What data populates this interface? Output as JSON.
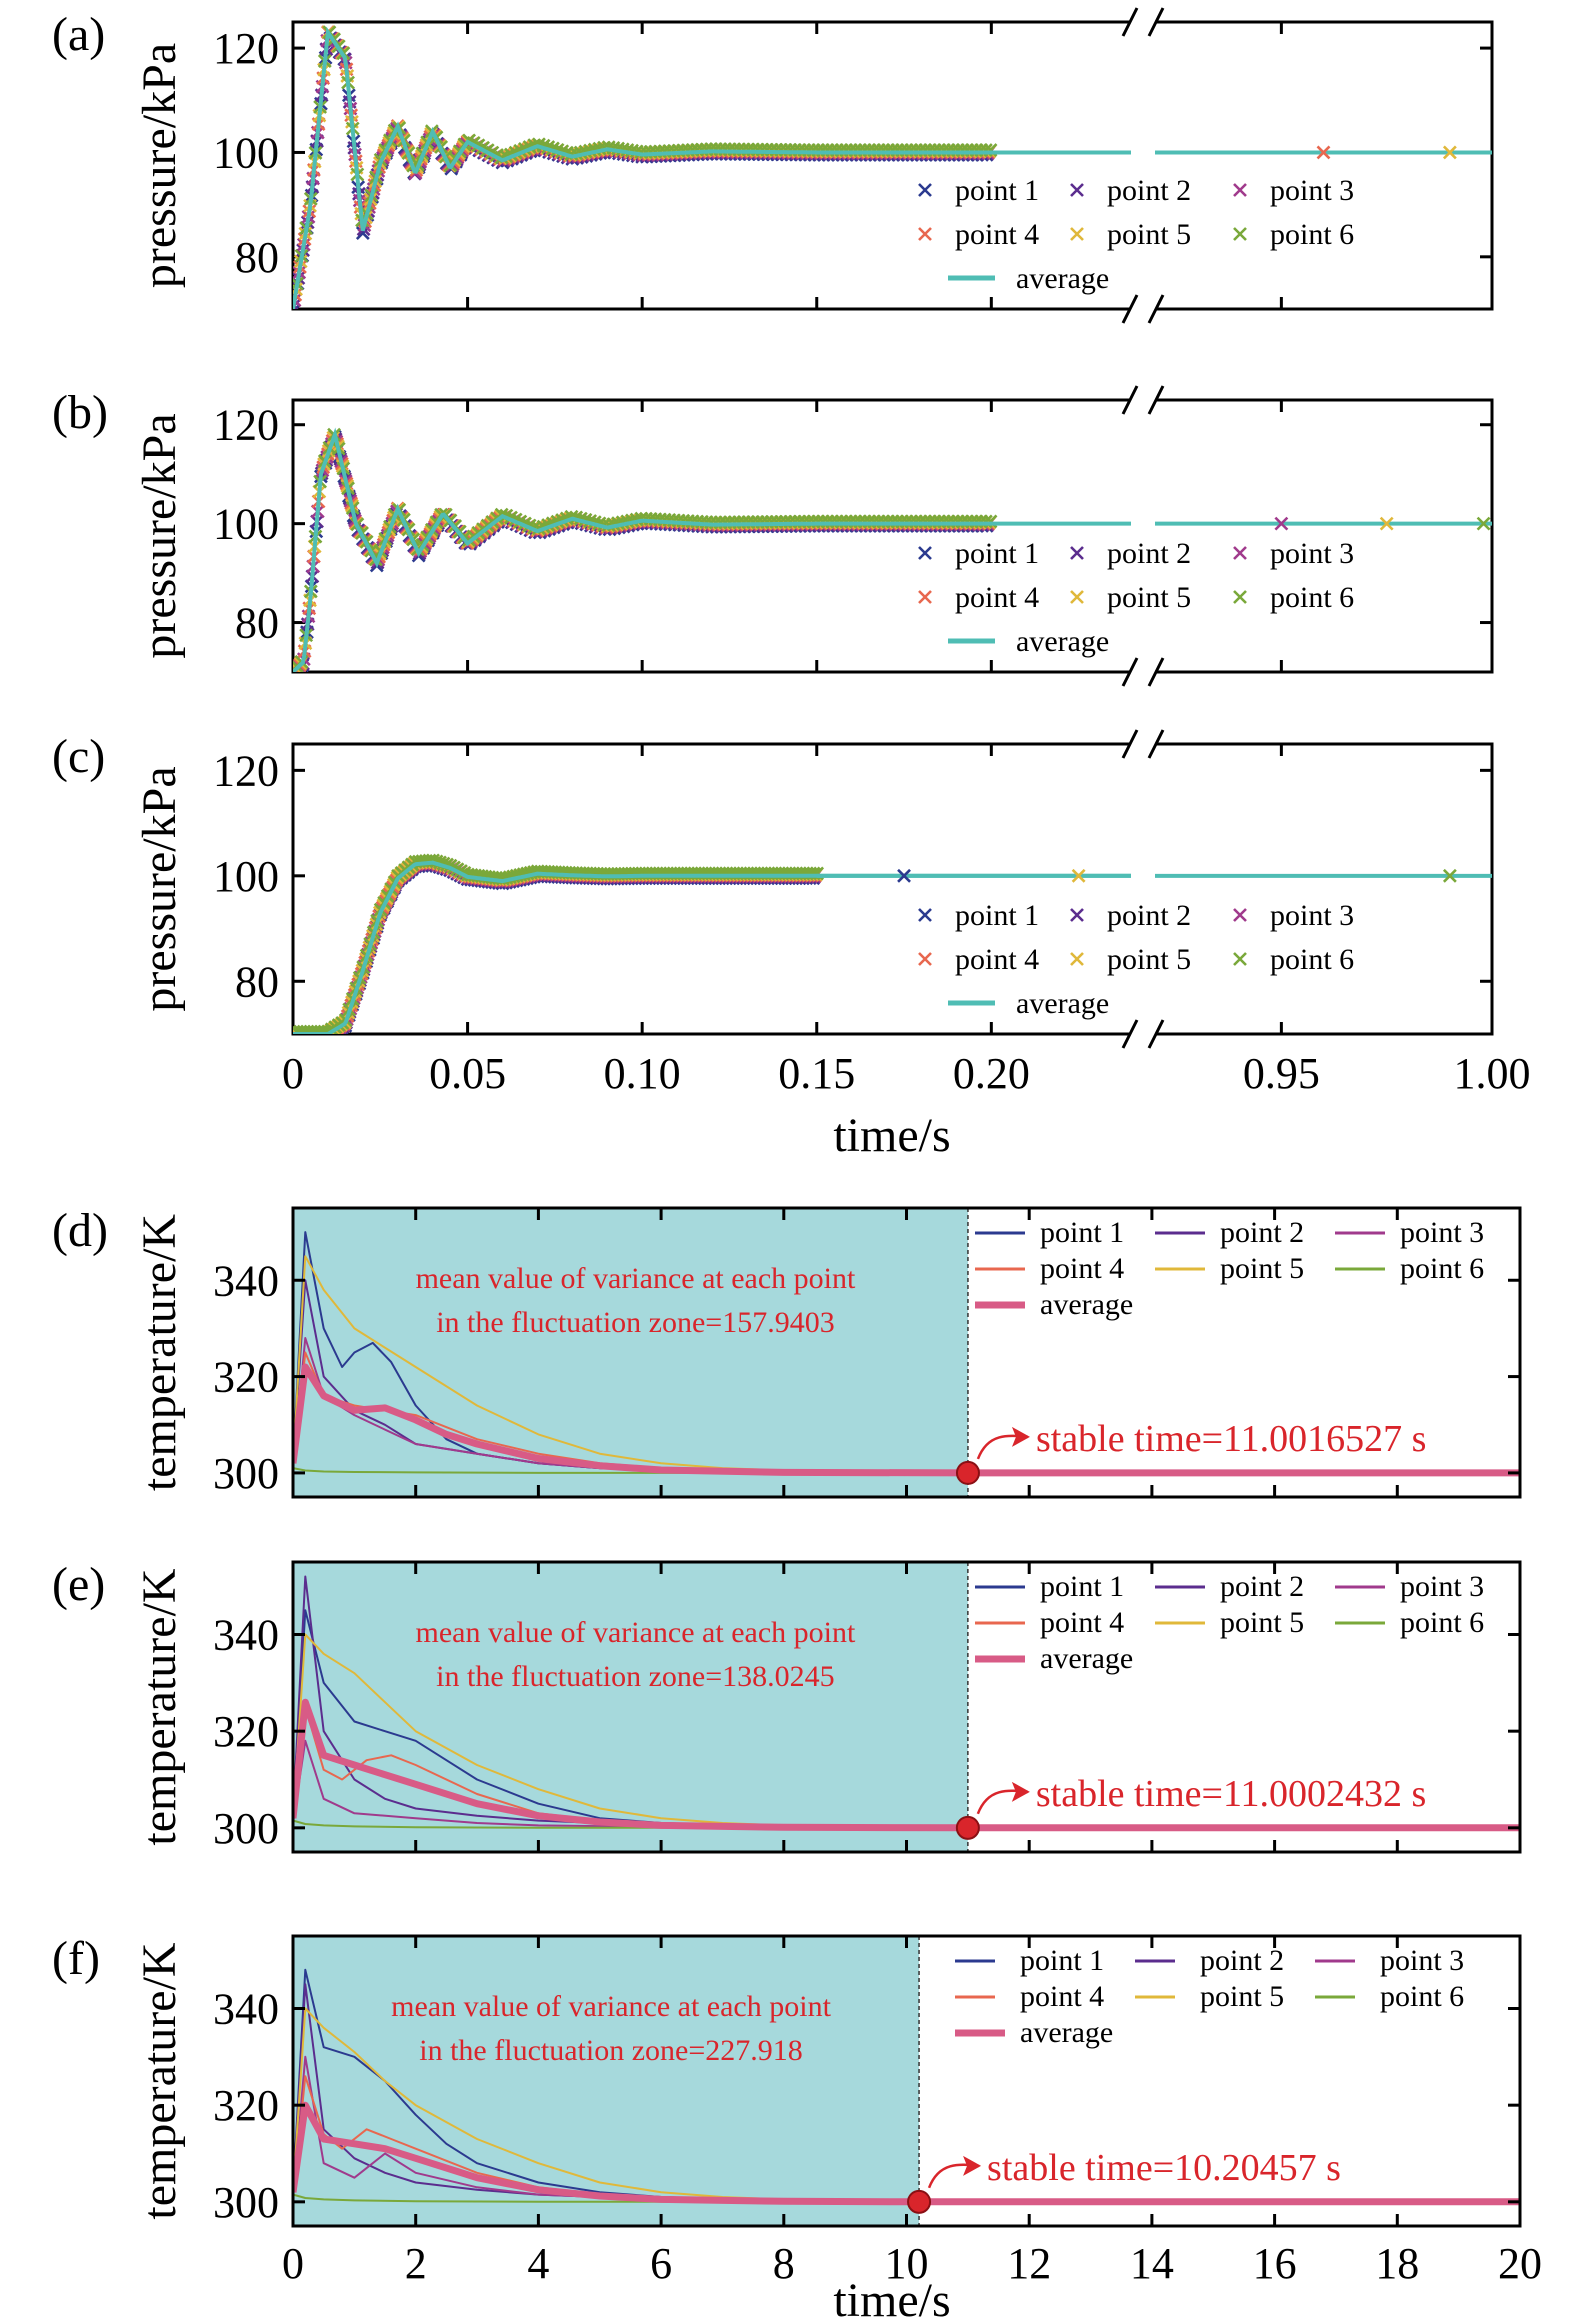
{
  "colors": {
    "point1": "#2b3a8f",
    "point2": "#5b2d8e",
    "point3": "#a03a8c",
    "point4": "#e8674f",
    "point5": "#e0b83a",
    "point6": "#7aa83a",
    "average_pressure": "#4fbdb4",
    "average_temperature": "#d85b86",
    "fluctuation_zone": "#a6d9dc",
    "annotation": "#d9252b"
  },
  "pressure_panels": {
    "x_ticks": [
      "0",
      "0.05",
      "0.10",
      "0.15",
      "0.20",
      "0.95",
      "1.00"
    ],
    "y_ticks": [
      "80",
      "100",
      "120"
    ],
    "y_label": "pressure/kPa",
    "x_label": "time/s"
  },
  "temperature_panels": {
    "x_ticks": [
      "0",
      "2",
      "4",
      "6",
      "8",
      "10",
      "12",
      "14",
      "16",
      "18",
      "20"
    ],
    "y_ticks": [
      "300",
      "320",
      "340"
    ],
    "y_label": "temperature/K",
    "x_label": "time/s"
  },
  "legend": {
    "series": [
      "point 1",
      "point 2",
      "point 3",
      "point 4",
      "point 5",
      "point 6"
    ],
    "average": "average"
  },
  "chart_data": [
    {
      "panel": "(a)",
      "type": "line",
      "ylabel": "pressure/kPa",
      "xlabel": "time/s",
      "ylim": [
        70,
        125
      ],
      "xlim_segments": [
        [
          0,
          0.24
        ],
        [
          0.92,
          1.0
        ]
      ],
      "axis_break": true,
      "legend_position": "bottom-right",
      "series": [
        "point 1",
        "point 2",
        "point 3",
        "point 4",
        "point 5",
        "point 6",
        "average"
      ],
      "average": {
        "x": [
          0,
          0.005,
          0.01,
          0.015,
          0.02,
          0.025,
          0.03,
          0.035,
          0.04,
          0.045,
          0.05,
          0.06,
          0.07,
          0.08,
          0.09,
          0.1,
          0.12,
          0.15,
          0.2,
          1.0
        ],
        "y": [
          70,
          90,
          123,
          118,
          85,
          98,
          105,
          96,
          104,
          97,
          102,
          98.5,
          101.2,
          99.2,
          100.6,
          99.6,
          100.2,
          100,
          100,
          100
        ]
      }
    },
    {
      "panel": "(b)",
      "type": "line",
      "ylabel": "pressure/kPa",
      "xlabel": "time/s",
      "ylim": [
        70,
        125
      ],
      "xlim_segments": [
        [
          0,
          0.24
        ],
        [
          0.92,
          1.0
        ]
      ],
      "axis_break": true,
      "legend_position": "bottom-right",
      "series": [
        "point 1",
        "point 2",
        "point 3",
        "point 4",
        "point 5",
        "point 6",
        "average"
      ],
      "average": {
        "x": [
          0,
          0.003,
          0.005,
          0.008,
          0.012,
          0.018,
          0.024,
          0.03,
          0.036,
          0.043,
          0.05,
          0.06,
          0.07,
          0.08,
          0.09,
          0.1,
          0.12,
          0.15,
          0.2,
          1.0
        ],
        "y": [
          70,
          72,
          85,
          110,
          118,
          100,
          92,
          103,
          94,
          102,
          96,
          101.5,
          98.5,
          101,
          99.2,
          100.6,
          99.8,
          100,
          100,
          100
        ]
      }
    },
    {
      "panel": "(c)",
      "type": "line",
      "ylabel": "pressure/kPa",
      "xlabel": "time/s",
      "ylim": [
        70,
        125
      ],
      "xlim_segments": [
        [
          0,
          0.24
        ],
        [
          0.92,
          1.0
        ]
      ],
      "axis_break": true,
      "legend_position": "bottom-right",
      "series": [
        "point 1",
        "point 2",
        "point 3",
        "point 4",
        "point 5",
        "point 6",
        "average"
      ],
      "average": {
        "x": [
          0,
          0.005,
          0.01,
          0.015,
          0.02,
          0.025,
          0.03,
          0.035,
          0.04,
          0.045,
          0.05,
          0.06,
          0.07,
          0.08,
          0.09,
          0.1,
          0.12,
          0.15,
          0.2,
          1.0
        ],
        "y": [
          70,
          70,
          70,
          72,
          82,
          93,
          99.5,
          102.2,
          102.5,
          101.5,
          99.8,
          99,
          100.4,
          100.1,
          99.9,
          100,
          100,
          100,
          100,
          100
        ]
      }
    },
    {
      "panel": "(d)",
      "type": "line",
      "ylabel": "temperature/K",
      "xlabel": "time/s",
      "ylim": [
        295,
        355
      ],
      "xlim": [
        0,
        20
      ],
      "legend_position": "top-right",
      "fluctuation_zone": [
        0,
        11.0016527
      ],
      "annotation": "mean value of variance at each point in the fluctuation zone=157.9403",
      "annotation_lines": [
        "mean value of variance at each point",
        "in the fluctuation zone=157.9403"
      ],
      "stable_time": 11.0016527,
      "stable_label": "stable time=11.0016527 s",
      "series": [
        {
          "name": "point 1",
          "x": [
            0,
            0.2,
            0.5,
            0.8,
            1.0,
            1.3,
            1.6,
            2.0,
            2.5,
            3,
            4,
            5,
            6,
            8,
            11,
            20
          ],
          "y": [
            302,
            350,
            330,
            322,
            325,
            327,
            323,
            314,
            307,
            304,
            302,
            301,
            300.5,
            300,
            300,
            300
          ]
        },
        {
          "name": "point 2",
          "x": [
            0,
            0.2,
            0.5,
            1,
            1.5,
            2,
            3,
            4,
            5,
            6,
            8,
            11,
            20
          ],
          "y": [
            302,
            340,
            320,
            313,
            310,
            306,
            304,
            302,
            301,
            300.5,
            300,
            300,
            300
          ]
        },
        {
          "name": "point 3",
          "x": [
            0,
            0.2,
            0.5,
            1,
            1.5,
            2,
            3,
            4,
            5,
            6,
            8,
            11,
            20
          ],
          "y": [
            301,
            328,
            316,
            312,
            309,
            306,
            304,
            302,
            301,
            300.5,
            300,
            300,
            300
          ]
        },
        {
          "name": "point 4",
          "x": [
            0,
            0.2,
            0.5,
            1,
            1.5,
            2,
            3,
            4,
            5,
            6,
            8,
            11,
            20
          ],
          "y": [
            301,
            325,
            316,
            314,
            313,
            312,
            307,
            304,
            302,
            301,
            300.2,
            300,
            300
          ]
        },
        {
          "name": "point 5",
          "x": [
            0,
            0.2,
            0.5,
            1,
            2,
            3,
            4,
            5,
            6,
            7,
            8,
            11,
            20
          ],
          "y": [
            302,
            345,
            338,
            330,
            322,
            314,
            308,
            304,
            302,
            301,
            300.5,
            300,
            300
          ]
        },
        {
          "name": "point 6",
          "x": [
            0,
            0.2,
            0.5,
            1,
            2,
            4,
            6,
            8,
            11,
            20
          ],
          "y": [
            301,
            300.5,
            300.3,
            300.2,
            300.1,
            300,
            300,
            300,
            300,
            300
          ]
        },
        {
          "name": "average",
          "x": [
            0,
            0.2,
            0.5,
            1,
            1.5,
            2,
            2.5,
            3,
            4,
            5,
            6,
            8,
            11,
            20
          ],
          "y": [
            302,
            322,
            316,
            313,
            313.5,
            311,
            308,
            306,
            303,
            301.5,
            300.6,
            300.1,
            300,
            300
          ]
        }
      ]
    },
    {
      "panel": "(e)",
      "type": "line",
      "ylabel": "temperature/K",
      "xlabel": "time/s",
      "ylim": [
        295,
        355
      ],
      "xlim": [
        0,
        20
      ],
      "legend_position": "top-right",
      "fluctuation_zone": [
        0,
        11.0002432
      ],
      "annotation": "mean value of variance at each point in the fluctuation zone=138.0245",
      "annotation_lines": [
        "mean value of variance at each point",
        "in the fluctuation zone=138.0245"
      ],
      "stable_time": 11.0002432,
      "stable_label": "stable time=11.0002432 s",
      "series": [
        {
          "name": "point 1",
          "x": [
            0,
            0.2,
            0.5,
            1,
            1.5,
            2,
            2.5,
            3,
            4,
            5,
            6,
            8,
            11,
            20
          ],
          "y": [
            302,
            345,
            330,
            322,
            320,
            318,
            314,
            310,
            305,
            302,
            301,
            300.2,
            300,
            300
          ]
        },
        {
          "name": "point 2",
          "x": [
            0,
            0.2,
            0.5,
            1,
            1.5,
            2,
            3,
            4,
            5,
            6,
            8,
            11,
            20
          ],
          "y": [
            302,
            352,
            320,
            310,
            306,
            304,
            302.5,
            301.5,
            301,
            300.5,
            300,
            300,
            300
          ]
        },
        {
          "name": "point 3",
          "x": [
            0,
            0.2,
            0.5,
            1,
            2,
            3,
            4,
            6,
            8,
            11,
            20
          ],
          "y": [
            301,
            318,
            306,
            303,
            302,
            301,
            300.5,
            300.2,
            300,
            300,
            300
          ]
        },
        {
          "name": "point 4",
          "x": [
            0,
            0.2,
            0.5,
            0.8,
            1.2,
            1.6,
            2,
            3,
            4,
            5,
            6,
            8,
            11,
            20
          ],
          "y": [
            301,
            325,
            312,
            310,
            314,
            315,
            313,
            307,
            303,
            301.5,
            300.8,
            300.2,
            300,
            300
          ]
        },
        {
          "name": "point 5",
          "x": [
            0,
            0.2,
            0.5,
            1,
            1.5,
            2,
            3,
            4,
            5,
            6,
            7,
            8,
            11,
            20
          ],
          "y": [
            302,
            340,
            336,
            332,
            326,
            320,
            313,
            308,
            304,
            302,
            301,
            300.5,
            300,
            300
          ]
        },
        {
          "name": "point 6",
          "x": [
            0,
            0.2,
            0.5,
            1,
            2,
            4,
            6,
            8,
            11,
            20
          ],
          "y": [
            301.5,
            300.8,
            300.5,
            300.3,
            300.1,
            300,
            300,
            300,
            300,
            300
          ]
        },
        {
          "name": "average",
          "x": [
            0,
            0.2,
            0.5,
            1,
            1.5,
            2,
            3,
            4,
            5,
            6,
            8,
            11,
            20
          ],
          "y": [
            302,
            326,
            315,
            313,
            311,
            309,
            305,
            302.5,
            301.2,
            300.5,
            300.1,
            300,
            300
          ]
        }
      ]
    },
    {
      "panel": "(f)",
      "type": "line",
      "ylabel": "temperature/K",
      "xlabel": "time/s",
      "ylim": [
        295,
        355
      ],
      "xlim": [
        0,
        20
      ],
      "legend_position": "top-right",
      "fluctuation_zone": [
        0,
        10.20457
      ],
      "annotation": "mean value of variance at each point in the fluctuation zone=227.918",
      "annotation_lines": [
        "mean value of variance at each point",
        "in the fluctuation zone=227.918"
      ],
      "stable_time": 10.20457,
      "stable_label": "stable time=10.20457 s",
      "series": [
        {
          "name": "point 1",
          "x": [
            0,
            0.2,
            0.5,
            1,
            1.5,
            2,
            2.5,
            3,
            4,
            5,
            6,
            8,
            10.2,
            20
          ],
          "y": [
            302,
            348,
            332,
            330,
            325,
            318,
            312,
            308,
            304,
            302,
            301,
            300.2,
            300,
            300
          ]
        },
        {
          "name": "point 2",
          "x": [
            0,
            0.2,
            0.5,
            1,
            1.5,
            2,
            3,
            4,
            5,
            6,
            8,
            10.2,
            20
          ],
          "y": [
            302,
            345,
            315,
            309,
            306,
            304,
            302.5,
            301.5,
            301,
            300.5,
            300,
            300,
            300
          ]
        },
        {
          "name": "point 3",
          "x": [
            0,
            0.2,
            0.5,
            1,
            1.5,
            2,
            3,
            4,
            6,
            8,
            10.2,
            20
          ],
          "y": [
            301,
            330,
            308,
            305,
            310,
            306,
            303,
            301.5,
            300.5,
            300.1,
            300,
            300
          ]
        },
        {
          "name": "point 4",
          "x": [
            0,
            0.2,
            0.5,
            0.8,
            1.2,
            1.6,
            2,
            3,
            4,
            5,
            6,
            8,
            10.2,
            20
          ],
          "y": [
            301,
            326,
            314,
            311,
            315,
            313,
            311,
            306,
            303,
            301.5,
            300.8,
            300.2,
            300,
            300
          ]
        },
        {
          "name": "point 5",
          "x": [
            0,
            0.2,
            0.5,
            1,
            1.5,
            2,
            3,
            4,
            5,
            6,
            7,
            8,
            10.2,
            20
          ],
          "y": [
            302,
            340,
            336,
            331,
            325,
            320,
            313,
            308,
            304,
            302,
            301,
            300.5,
            300,
            300
          ]
        },
        {
          "name": "point 6",
          "x": [
            0,
            0.2,
            0.5,
            1,
            2,
            4,
            6,
            8,
            10.2,
            20
          ],
          "y": [
            301.5,
            300.8,
            300.5,
            300.3,
            300.1,
            300,
            300,
            300,
            300,
            300
          ]
        },
        {
          "name": "average",
          "x": [
            0,
            0.2,
            0.5,
            1,
            1.5,
            2,
            3,
            4,
            5,
            6,
            8,
            10.2,
            20
          ],
          "y": [
            302,
            320,
            313,
            312,
            311,
            309,
            305,
            302.5,
            301.2,
            300.5,
            300.1,
            300,
            300
          ]
        }
      ]
    }
  ]
}
